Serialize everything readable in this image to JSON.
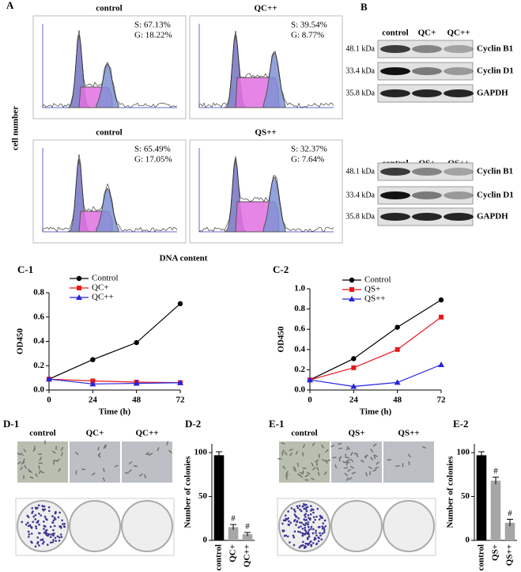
{
  "panels": {
    "A": {
      "label": "A",
      "y_label": "cell number",
      "x_label": "DNA content",
      "plots": [
        {
          "title": "control",
          "s": "S: 67.13%",
          "g": "G: 18.22%"
        },
        {
          "title": "QC++",
          "s": "S: 39.54%",
          "g": "G: 8.77%"
        },
        {
          "title": "control",
          "s": "S: 65.49%",
          "g": "G: 17.05%"
        },
        {
          "title": "QS++",
          "s": "S: 32.37%",
          "g": "G: 7.64%"
        }
      ]
    },
    "B": {
      "label": "B",
      "blots": [
        {
          "lanes": [
            "control",
            "QC+",
            "QC++"
          ],
          "rows": [
            {
              "kda": "48.1 kDa",
              "protein": "Cyclin B1"
            },
            {
              "kda": "33.4 kDa",
              "protein": "Cyclin D1"
            },
            {
              "kda": "35.8 kDa",
              "protein": "GAPDH"
            }
          ]
        },
        {
          "lanes": [
            "control",
            "QS+",
            "QS++"
          ],
          "rows": [
            {
              "kda": "48.1 kDa",
              "protein": "Cyclin B1"
            },
            {
              "kda": "33.4 kDa",
              "protein": "Cyclin D1"
            },
            {
              "kda": "35.8 kDa",
              "protein": "GAPDH"
            }
          ]
        }
      ]
    },
    "D1": {
      "label": "D-1",
      "columns": [
        "control",
        "QC+",
        "QC++"
      ]
    },
    "E1": {
      "label": "E-1",
      "columns": [
        "control",
        "QS+",
        "QS++"
      ]
    }
  },
  "chart_data": [
    {
      "type": "line",
      "title": "C-1",
      "x_label": "Time (h)",
      "y_label": "OD450",
      "x": [
        0,
        24,
        48,
        72
      ],
      "xlim": [
        0,
        72
      ],
      "xticks": [
        0,
        24,
        48,
        72
      ],
      "ylim": [
        0,
        0.8
      ],
      "yticks": [
        {
          "value": 0,
          "label": "0.0"
        },
        0.2,
        0.4,
        0.6,
        0.8
      ],
      "series": [
        {
          "name": "Control",
          "color": "#000000",
          "marker": "circle",
          "values": [
            0.09,
            0.25,
            0.39,
            0.71
          ]
        },
        {
          "name": "QC+",
          "color": "#e8191b",
          "marker": "square",
          "values": [
            0.09,
            0.075,
            0.065,
            0.06
          ]
        },
        {
          "name": "QC++",
          "color": "#2424e0",
          "marker": "triangle",
          "values": [
            0.09,
            0.05,
            0.055,
            0.06
          ]
        }
      ]
    },
    {
      "type": "line",
      "title": "C-2",
      "x_label": "Time (h)",
      "y_label": "OD450",
      "x": [
        0,
        24,
        48,
        72
      ],
      "xlim": [
        0,
        72
      ],
      "xticks": [
        0,
        24,
        48,
        72
      ],
      "ylim": [
        0,
        1
      ],
      "yticks": [
        {
          "value": 0,
          "label": "0.0"
        },
        0.2,
        0.4,
        0.6,
        0.8,
        {
          "value": 1,
          "label": "1.0"
        }
      ],
      "series": [
        {
          "name": "Control",
          "color": "#000000",
          "marker": "circle",
          "values": [
            0.1,
            0.31,
            0.62,
            0.89
          ]
        },
        {
          "name": "QS+",
          "color": "#e8191b",
          "marker": "square",
          "values": [
            0.1,
            0.22,
            0.4,
            0.72
          ]
        },
        {
          "name": "QS++",
          "color": "#2424e0",
          "marker": "triangle",
          "values": [
            0.1,
            0.035,
            0.075,
            0.25
          ]
        }
      ]
    },
    {
      "type": "bar",
      "title": "D-2",
      "y_label": "Number of colonies",
      "categories": [
        "control",
        "QC+",
        "QC++"
      ],
      "values": [
        97,
        15,
        7
      ],
      "errors": [
        4,
        3,
        2
      ],
      "annotations": [
        null,
        "#",
        "#"
      ],
      "colors": [
        "#000000",
        "#a6a6a6",
        "#a6a6a6"
      ],
      "ylim": [
        0,
        110
      ],
      "yticks": [
        0,
        50,
        100
      ]
    },
    {
      "type": "bar",
      "title": "E-2",
      "y_label": "Number of colonies",
      "categories": [
        "control",
        "QS+",
        "QS++"
      ],
      "values": [
        97,
        68,
        20
      ],
      "errors": [
        4,
        4,
        4
      ],
      "annotations": [
        null,
        "#",
        "#"
      ],
      "colors": [
        "#000000",
        "#a6a6a6",
        "#a6a6a6"
      ],
      "ylim": [
        0,
        110
      ],
      "yticks": [
        0,
        50,
        100
      ]
    }
  ]
}
